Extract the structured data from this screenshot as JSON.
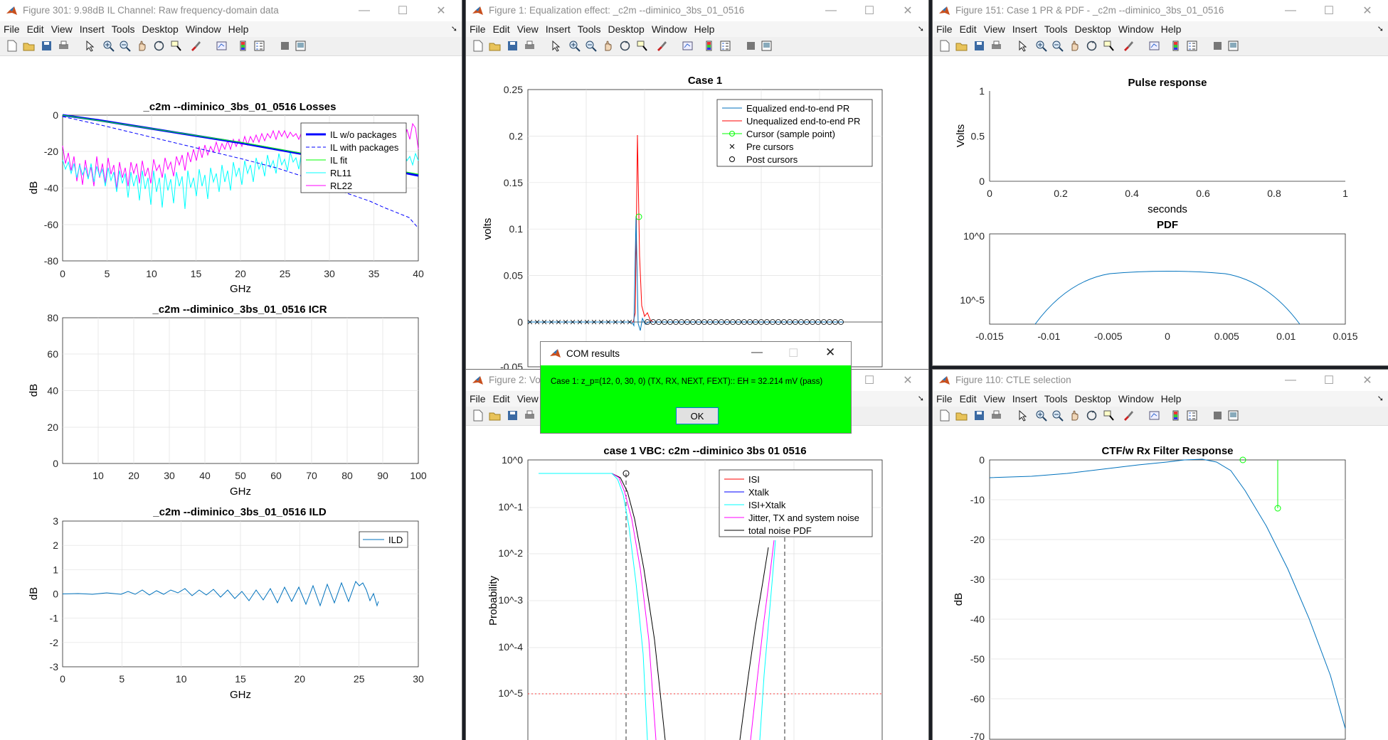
{
  "menu": [
    "File",
    "Edit",
    "View",
    "Insert",
    "Tools",
    "Desktop",
    "Window",
    "Help"
  ],
  "windows": {
    "w301": {
      "title": "Figure 301: 9.98dB IL Channel: Raw frequency-domain data"
    },
    "w1": {
      "title": "Figure 1: Equalization effect: _c2m --diminico_3bs_01_0516"
    },
    "w151": {
      "title": "Figure 151: Case 1 PR & PDF - _c2m --diminico_3bs_01_0516"
    },
    "w2": {
      "title": "Figure 2: Vol"
    },
    "w110": {
      "title": "Figure 110: CTLE selection"
    }
  },
  "dialog": {
    "title": "COM results",
    "message": "Case 1: z_p=(12, 0, 30, 0) (TX, RX, NEXT, FEXT):: EH = 32.214 mV (pass)",
    "ok": "OK",
    "bg": "#00ff00"
  },
  "chart_data": [
    {
      "type": "line",
      "title": "_c2m --diminico_3bs_01_0516 Losses",
      "xlabel": "GHz",
      "ylabel": "dB",
      "xlim": [
        0,
        40
      ],
      "ylim": [
        -80,
        0
      ],
      "xticks": [
        "0",
        "5",
        "10",
        "15",
        "20",
        "25",
        "30",
        "35",
        "40"
      ],
      "yticks": [
        "0",
        "-20",
        "-40",
        "-60",
        "-80"
      ],
      "legend": [
        "IL w/o packages",
        "IL with packages",
        "IL fit",
        "RL11",
        "RL22"
      ],
      "legend_position": "top-right",
      "series": [
        {
          "name": "IL w/o packages",
          "x": [
            0,
            5,
            10,
            15,
            20,
            25,
            30,
            35,
            40
          ],
          "y": [
            0,
            -3,
            -6,
            -9,
            -12.5,
            -16,
            -19.5,
            -23,
            -26
          ]
        },
        {
          "name": "IL with packages",
          "x": [
            0,
            5,
            10,
            15,
            20,
            25,
            30,
            35,
            40
          ],
          "y": [
            -1,
            -5.5,
            -11,
            -16,
            -21,
            -27,
            -35,
            -47,
            -62
          ]
        },
        {
          "name": "RL11",
          "x": [
            0,
            5,
            10,
            15,
            20,
            25,
            30,
            35,
            40
          ],
          "y": [
            -25,
            -30,
            -35,
            -40,
            -42,
            -34,
            -30,
            -27,
            -25
          ]
        },
        {
          "name": "RL22",
          "x": [
            0,
            5,
            10,
            15,
            20,
            25,
            30,
            35,
            40
          ],
          "y": [
            -30,
            -32,
            -35,
            -33,
            -27,
            -18,
            -13,
            -12,
            -10
          ]
        }
      ]
    },
    {
      "type": "line",
      "title": "_c2m --diminico_3bs_01_0516 ICR",
      "xlabel": "GHz",
      "ylabel": "dB",
      "xlim": [
        0,
        100
      ],
      "ylim": [
        0,
        80
      ],
      "xticks": [
        "10",
        "20",
        "30",
        "40",
        "50",
        "60",
        "70",
        "80",
        "90",
        "100"
      ],
      "yticks": [
        "80",
        "60",
        "40",
        "20",
        "0"
      ]
    },
    {
      "type": "line",
      "title": "_c2m --diminico_3bs_01_0516 ILD",
      "xlabel": "GHz",
      "ylabel": "dB",
      "xlim": [
        0,
        30
      ],
      "ylim": [
        -3,
        3
      ],
      "xticks": [
        "0",
        "5",
        "10",
        "15",
        "20",
        "25",
        "30"
      ],
      "yticks": [
        "3",
        "2",
        "1",
        "0",
        "-1",
        "-2",
        "-3"
      ],
      "legend": [
        "ILD"
      ],
      "legend_position": "top-right",
      "series": [
        {
          "name": "ILD",
          "x": [
            0,
            5,
            10,
            15,
            20,
            23,
            24,
            25,
            26,
            26.5
          ],
          "y": [
            0,
            0.05,
            0.1,
            0,
            -0.1,
            0.4,
            0.6,
            0.3,
            -0.5,
            -0.3
          ]
        }
      ]
    },
    {
      "type": "line",
      "title": "Case 1",
      "ylabel": "volts",
      "ylim": [
        -0.05,
        0.25
      ],
      "yticks": [
        "0.25",
        "0.2",
        "0.15",
        "0.1",
        "0.05",
        "0",
        "-0.05"
      ],
      "legend": [
        "Equalized end-to-end PR",
        "Unequalized end-to-end PR",
        "Cursor (sample point)",
        "Pre cursors",
        "Post cursors"
      ],
      "legend_position": "top-right",
      "series": [
        {
          "name": "Unequalized end-to-end PR",
          "peak": 0.2
        },
        {
          "name": "Equalized end-to-end PR",
          "peak": 0.113
        },
        {
          "name": "Cursor (sample point)",
          "value": 0.113
        }
      ]
    },
    {
      "type": "line",
      "title": "Pulse response",
      "xlabel": "seconds",
      "ylabel": "Volts",
      "xlim": [
        0,
        1
      ],
      "ylim": [
        0,
        1
      ],
      "xticks": [
        "0",
        "0.2",
        "0.4",
        "0.6",
        "0.8",
        "1"
      ],
      "yticks": [
        "1",
        "0.5",
        "0"
      ]
    },
    {
      "type": "line",
      "title": "PDF",
      "xlim": [
        -0.015,
        0.015
      ],
      "log_y": true,
      "xticks": [
        "-0.015",
        "-0.01",
        "-0.005",
        "0",
        "0.005",
        "0.01",
        "0.015"
      ],
      "yticks": [
        "10^0",
        "10^-5"
      ]
    },
    {
      "type": "line",
      "title": "case 1 VBC:  c2m --diminico 3bs 01 0516",
      "ylabel": "Probability",
      "log_y": true,
      "yticks": [
        "10^0",
        "10^-1",
        "10^-2",
        "10^-3",
        "10^-4",
        "10^-5"
      ],
      "legend": [
        "ISI",
        "Xtalk",
        "ISI+Xtalk",
        "Jitter, TX and system noise",
        "total noise PDF"
      ],
      "legend_position": "top-right"
    },
    {
      "type": "line",
      "title": "CTF/w Rx Filter Response",
      "ylabel": "dB",
      "ylim": [
        -70,
        0
      ],
      "yticks": [
        "0",
        "-10",
        "-20",
        "-30",
        "-40",
        "-50",
        "-60",
        "-70"
      ]
    }
  ]
}
